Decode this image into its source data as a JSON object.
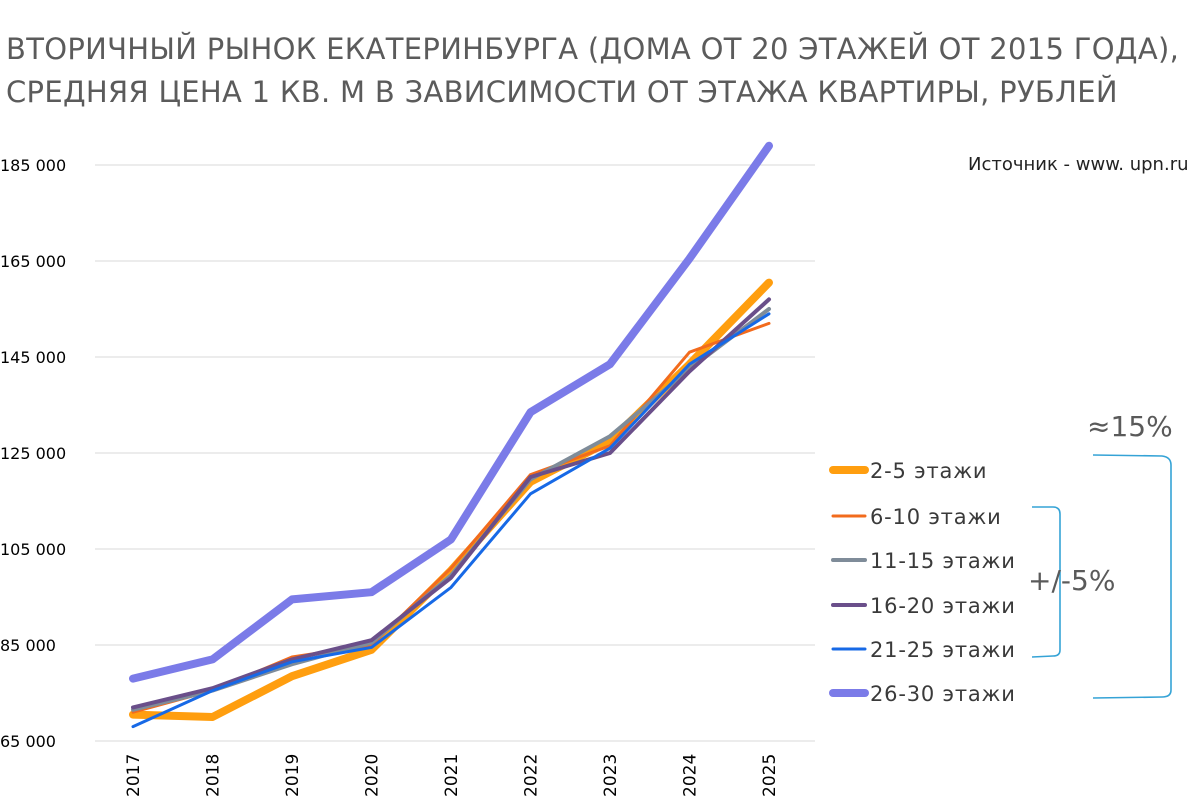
{
  "title": {
    "line1": "ВТОРИЧНЫЙ РЫНОК ЕКАТЕРИНБУРГА (ДОМА ОТ 20 ЭТАЖЕЙ ОТ 2015 ГОДА),",
    "line2": "СРЕДНЯЯ ЦЕНА 1 КВ. М В ЗАВИСИМОСТИ ОТ ЭТАЖА КВАРТИРЫ, РУБЛЕЙ"
  },
  "source": "Источник - www. upn.ru",
  "annotations": {
    "range_all": "≈15%",
    "range_mid": "+/-5%",
    "bracket_color": "#35a3d6"
  },
  "chart_data": {
    "type": "line",
    "title": "ВТОРИЧНЫЙ РЫНОК ЕКАТЕРИНБУРГА (ДОМА ОТ 20 ЭТАЖЕЙ ОТ 2015 ГОДА), СРЕДНЯЯ ЦЕНА 1 КВ. М В ЗАВИСИМОСТИ ОТ ЭТАЖА КВАРТИРЫ, РУБЛЕЙ",
    "x": [
      "2017",
      "2018",
      "2019",
      "2020",
      "2021",
      "2022",
      "2023",
      "2024",
      "2025"
    ],
    "ylim": [
      65000,
      185000
    ],
    "yticks": [
      65000,
      85000,
      105000,
      125000,
      145000,
      165000,
      185000
    ],
    "ytick_labels": [
      "65 000",
      "85 000",
      "105 000",
      "125 000",
      "145 000",
      "165 000",
      "185 000"
    ],
    "grid": "horizontal",
    "legend": "right",
    "series": [
      {
        "name": "2-5 этажи",
        "color": "#ff9e0f",
        "width": 8,
        "values": [
          70500,
          70000,
          78500,
          84000,
          100500,
          119000,
          127500,
          143500,
          160500
        ]
      },
      {
        "name": "6-10 этажи",
        "color": "#f26b1d",
        "width": 3,
        "values": [
          71000,
          75500,
          82500,
          85000,
          101000,
          120500,
          126500,
          146000,
          152000
        ]
      },
      {
        "name": "11-15 этажи",
        "color": "#7f8c99",
        "width": 4,
        "values": [
          71500,
          75500,
          81000,
          85500,
          99500,
          119500,
          128500,
          142500,
          155000
        ]
      },
      {
        "name": "16-20 этажи",
        "color": "#6a4f8a",
        "width": 4,
        "values": [
          72000,
          76000,
          82000,
          86000,
          99000,
          120000,
          125000,
          142000,
          157000
        ]
      },
      {
        "name": "21-25 этажи",
        "color": "#1769e6",
        "width": 3,
        "values": [
          68000,
          75500,
          81500,
          84500,
          97000,
          116500,
          126000,
          143500,
          154000
        ]
      },
      {
        "name": "26-30 этажи",
        "color": "#7b7be8",
        "width": 8,
        "values": [
          78000,
          82000,
          94500,
          96000,
          107000,
          133500,
          143500,
          165500,
          189000
        ]
      }
    ]
  }
}
